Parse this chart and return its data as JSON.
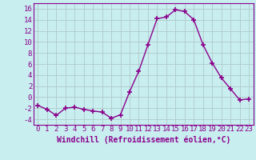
{
  "x": [
    0,
    1,
    2,
    3,
    4,
    5,
    6,
    7,
    8,
    9,
    10,
    11,
    12,
    13,
    14,
    15,
    16,
    17,
    18,
    19,
    20,
    21,
    22,
    23
  ],
  "y": [
    -1.5,
    -2.2,
    -3.3,
    -2.0,
    -1.8,
    -2.2,
    -2.5,
    -2.7,
    -3.8,
    -3.2,
    1.0,
    4.7,
    9.5,
    14.2,
    14.5,
    15.8,
    15.5,
    14.0,
    9.5,
    6.2,
    3.5,
    1.5,
    -0.5,
    -0.3
  ],
  "line_color": "#8B008B",
  "marker": "+",
  "marker_size": 4,
  "bg_color": "#c8eef0",
  "grid_color": "#b0c8c8",
  "xlabel": "Windchill (Refroidissement éolien,°C)",
  "tick_color": "#8B008B",
  "xlim": [
    -0.5,
    23.5
  ],
  "ylim": [
    -5,
    17
  ],
  "yticks": [
    -4,
    -2,
    0,
    2,
    4,
    6,
    8,
    10,
    12,
    14,
    16
  ],
  "xticks": [
    0,
    1,
    2,
    3,
    4,
    5,
    6,
    7,
    8,
    9,
    10,
    11,
    12,
    13,
    14,
    15,
    16,
    17,
    18,
    19,
    20,
    21,
    22,
    23
  ],
  "tick_fontsize": 6.5,
  "xlabel_fontsize": 7.0,
  "linewidth": 1.0,
  "spine_color": "#8B008B"
}
